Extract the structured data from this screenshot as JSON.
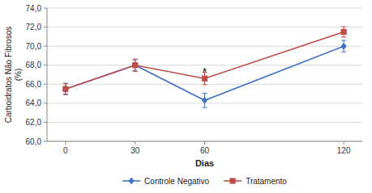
{
  "chart_data": {
    "type": "line",
    "x": [
      0,
      30,
      60,
      120
    ],
    "xlim": [
      -8,
      128
    ],
    "xticks": [
      0,
      30,
      60,
      120
    ],
    "ylim": [
      60.0,
      74.0
    ],
    "yticks": [
      {
        "value": 60.0,
        "label": "60,0"
      },
      {
        "value": 62.0,
        "label": "62,0"
      },
      {
        "value": 64.0,
        "label": "64,0"
      },
      {
        "value": 66.0,
        "label": "66,0"
      },
      {
        "value": 68.0,
        "label": "68,0"
      },
      {
        "value": 70.0,
        "label": "70,0"
      },
      {
        "value": 72.0,
        "label": "72,0"
      },
      {
        "value": 74.0,
        "label": "74,0"
      }
    ],
    "xlabel": "Dias",
    "ylabel": "Carboidratos Não Fibrosos\n(%)",
    "grid": true,
    "legend": "bottom",
    "series": [
      {
        "name": "Controle Negativo",
        "color": "#4472C4",
        "marker": "diamond",
        "values": [
          65.5,
          68.0,
          64.3,
          70.0
        ],
        "errors": [
          0.6,
          0.55,
          0.75,
          0.6
        ]
      },
      {
        "name": "Tratamento",
        "color": "#BE4B48",
        "marker": "square",
        "values": [
          65.5,
          68.0,
          66.6,
          71.5
        ],
        "errors": [
          0.55,
          0.65,
          0.65,
          0.55
        ]
      }
    ],
    "annotations": [
      {
        "text": "*",
        "x": 60,
        "y": 67.4
      }
    ]
  }
}
